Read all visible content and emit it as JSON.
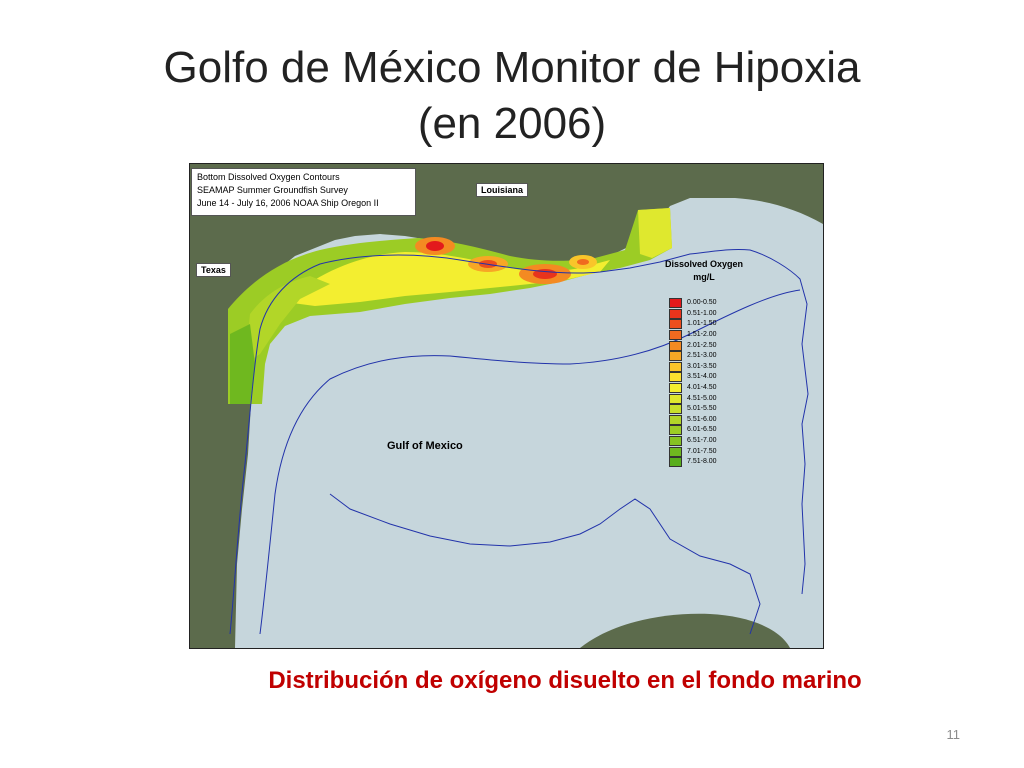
{
  "slide": {
    "title_line1": "Golfo de México Monitor de Hipoxia",
    "title_line2": "(en 2006)",
    "caption": "Distribución de oxígeno disuelto en el fondo marino",
    "page_number": "11"
  },
  "map": {
    "title_lines": [
      "Bottom Dissolved Oxygen Contours",
      "SEAMAP Summer Groundfish Survey",
      "June 14 - July 16, 2006 NOAA Ship Oregon II"
    ],
    "labels": {
      "louisiana": "Louisiana",
      "texas": "Texas",
      "gulf": "Gulf of Mexico"
    },
    "colors": {
      "land": "#5c6b4c",
      "sea": "#c6d6dc",
      "isobath": "#2233aa"
    },
    "legend": {
      "title_line1": "Dissolved Oxygen",
      "title_line2": "mg/L",
      "items": [
        {
          "label": "0.00-0.50",
          "color": "#e31a1c"
        },
        {
          "label": "0.51-1.00",
          "color": "#e8341c"
        },
        {
          "label": "1.01-1.50",
          "color": "#ec4e1d"
        },
        {
          "label": "1.51-2.00",
          "color": "#f06a1f"
        },
        {
          "label": "2.01-2.50",
          "color": "#f48a22"
        },
        {
          "label": "2.51-3.00",
          "color": "#f7a725"
        },
        {
          "label": "3.01-3.50",
          "color": "#f9c52a"
        },
        {
          "label": "3.51-4.00",
          "color": "#fbe02f"
        },
        {
          "label": "4.01-4.50",
          "color": "#f3ee30"
        },
        {
          "label": "4.51-5.00",
          "color": "#dfe82e"
        },
        {
          "label": "5.01-5.50",
          "color": "#c8e02b"
        },
        {
          "label": "5.51-6.00",
          "color": "#b2d628"
        },
        {
          "label": "6.01-6.50",
          "color": "#9ccc25"
        },
        {
          "label": "6.51-7.00",
          "color": "#86c222"
        },
        {
          "label": "7.01-7.50",
          "color": "#6fb81f"
        },
        {
          "label": "7.51-8.00",
          "color": "#58ae1c"
        }
      ]
    }
  }
}
